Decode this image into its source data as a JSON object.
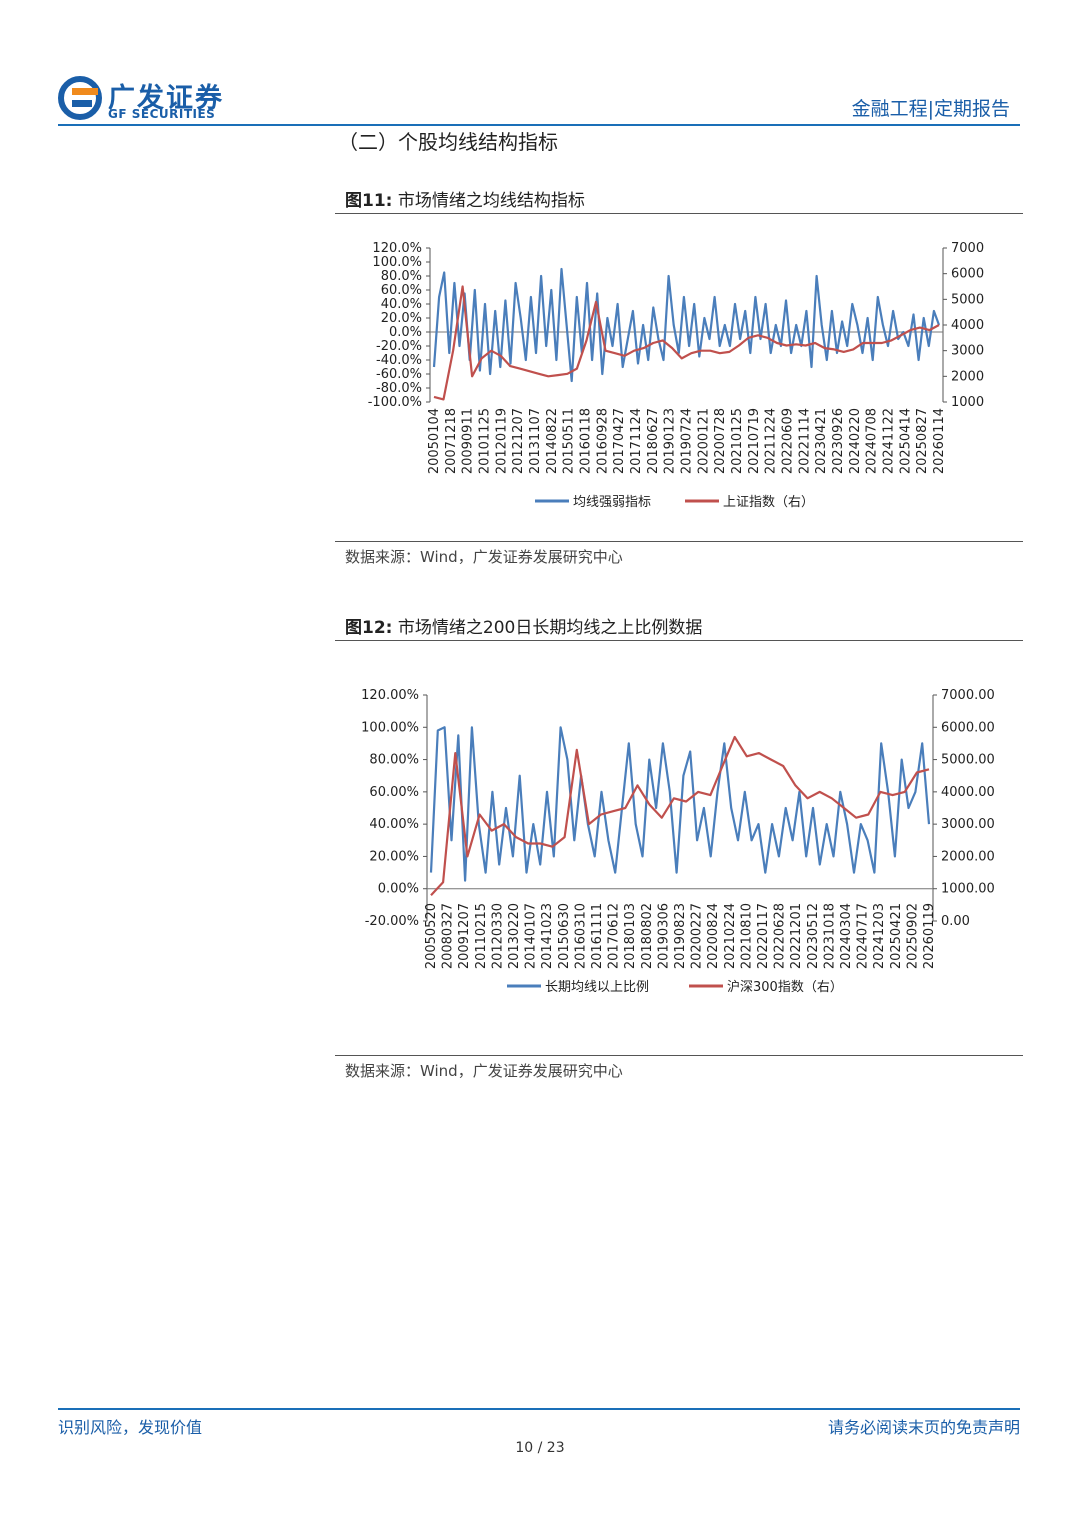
{
  "header": {
    "logo_cn": "广发证券",
    "logo_en": "GF SECURITIES",
    "right": "金融工程|定期报告"
  },
  "section_title": "（二）个股均线结构指标",
  "colors": {
    "blue": "#4a7ebb",
    "red": "#c0504d",
    "brand": "#1a5ea8"
  },
  "figures": [
    {
      "label": "图11:",
      "title": "市场情绪之均线结构指标",
      "source": "数据来源：Wind，广发证券发展研究中心"
    },
    {
      "label": "图12:",
      "title": "市场情绪之200日长期均线之上比例数据",
      "source": "数据来源：Wind，广发证券发展研究中心"
    }
  ],
  "chart_data": [
    {
      "type": "line",
      "left_ticks": [
        "120.0%",
        "100.0%",
        "80.0%",
        "60.0%",
        "40.0%",
        "20.0%",
        "0.0%",
        "-20.0%",
        "-40.0%",
        "-60.0%",
        "-80.0%",
        "-100.0%"
      ],
      "right_ticks": [
        "7000",
        "6000",
        "5000",
        "4000",
        "3000",
        "2000",
        "1000"
      ],
      "y_left_lim": [
        -100,
        120
      ],
      "y_right_lim": [
        1000,
        7000
      ],
      "x_labels": [
        "20050104",
        "20071218",
        "20090911",
        "20101125",
        "20120119",
        "20121207",
        "20131107",
        "20140822",
        "20150511",
        "20160118",
        "20160928",
        "20170427",
        "20171124",
        "20180627",
        "20190123",
        "20190724",
        "20200121",
        "20200728",
        "20210125",
        "20210719",
        "20211224",
        "20220609",
        "20221114",
        "20230421",
        "20230926",
        "20240220",
        "20240708",
        "20241122",
        "20250414",
        "20250827",
        "20260114"
      ],
      "series": [
        {
          "name": "均线强弱指标",
          "axis": "left",
          "values": [
            -50,
            50,
            85,
            -30,
            70,
            -20,
            55,
            -40,
            60,
            -55,
            40,
            -60,
            30,
            -50,
            45,
            -45,
            70,
            20,
            -40,
            50,
            -30,
            80,
            -20,
            60,
            -40,
            90,
            10,
            -70,
            50,
            -30,
            70,
            -40,
            55,
            -60,
            20,
            -20,
            40,
            -50,
            -10,
            30,
            -45,
            10,
            -40,
            35,
            -10,
            -40,
            80,
            10,
            -30,
            50,
            -20,
            40,
            -35,
            20,
            -10,
            50,
            -20,
            10,
            -20,
            40,
            -10,
            30,
            -30,
            50,
            -10,
            40,
            -30,
            10,
            -20,
            45,
            -30,
            10,
            -20,
            30,
            -50,
            80,
            10,
            -40,
            30,
            -30,
            15,
            -20,
            40,
            10,
            -30,
            20,
            -40,
            50,
            10,
            -20,
            30,
            -10,
            0,
            -20,
            25,
            -40,
            20,
            -20,
            30,
            10
          ]
        },
        {
          "name": "上证指数（右）",
          "axis": "right",
          "values": [
            1200,
            1100,
            3000,
            5500,
            2000,
            2700,
            3000,
            2800,
            2400,
            2300,
            2200,
            2100,
            2000,
            2050,
            2100,
            2300,
            3400,
            4900,
            3000,
            2900,
            2800,
            3000,
            3100,
            3300,
            3400,
            3100,
            2700,
            2900,
            3000,
            3000,
            2900,
            2950,
            3200,
            3500,
            3600,
            3500,
            3300,
            3200,
            3250,
            3200,
            3300,
            3100,
            3050,
            2950,
            3050,
            3300,
            3300,
            3300,
            3400,
            3600,
            3800,
            3900,
            3800,
            4000
          ]
        }
      ]
    },
    {
      "type": "line",
      "left_ticks": [
        "120.00%",
        "100.00%",
        "80.00%",
        "60.00%",
        "40.00%",
        "20.00%",
        "0.00%",
        "-20.00%"
      ],
      "right_ticks": [
        "7000.00",
        "6000.00",
        "5000.00",
        "4000.00",
        "3000.00",
        "2000.00",
        "1000.00",
        "0.00"
      ],
      "y_left_lim": [
        -20,
        120
      ],
      "y_right_lim": [
        0,
        7000
      ],
      "x_labels": [
        "20050520",
        "20080327",
        "20091207",
        "20110215",
        "20120330",
        "20130220",
        "20140107",
        "20141023",
        "20150630",
        "20160310",
        "20161111",
        "20170612",
        "20180103",
        "20180802",
        "20190306",
        "20190823",
        "20200227",
        "20200824",
        "20210224",
        "20210810",
        "20220117",
        "20220628",
        "20221201",
        "20230512",
        "20231018",
        "20240304",
        "20240717",
        "20241203",
        "20250421",
        "20250902",
        "20260119"
      ],
      "series": [
        {
          "name": "长期均线以上比例",
          "axis": "left",
          "values": [
            10,
            98,
            100,
            30,
            95,
            5,
            100,
            40,
            10,
            60,
            15,
            50,
            20,
            70,
            10,
            40,
            15,
            60,
            20,
            100,
            80,
            30,
            70,
            40,
            20,
            60,
            30,
            10,
            50,
            90,
            40,
            20,
            80,
            50,
            90,
            60,
            10,
            70,
            85,
            30,
            50,
            20,
            60,
            90,
            50,
            30,
            60,
            30,
            40,
            10,
            40,
            20,
            50,
            30,
            60,
            20,
            50,
            15,
            40,
            20,
            60,
            40,
            10,
            40,
            30,
            10,
            90,
            60,
            20,
            80,
            50,
            60,
            90,
            40
          ]
        },
        {
          "name": "沪深300指数（右）",
          "axis": "right",
          "values": [
            800,
            1200,
            5200,
            2000,
            3300,
            2800,
            3000,
            2600,
            2400,
            2400,
            2300,
            2600,
            5300,
            3000,
            3300,
            3400,
            3500,
            4200,
            3600,
            3200,
            3800,
            3700,
            4000,
            3900,
            4800,
            5700,
            5100,
            5200,
            5000,
            4800,
            4200,
            3800,
            4000,
            3800,
            3500,
            3200,
            3300,
            4000,
            3900,
            4000,
            4600,
            4700
          ]
        }
      ]
    }
  ]
}
